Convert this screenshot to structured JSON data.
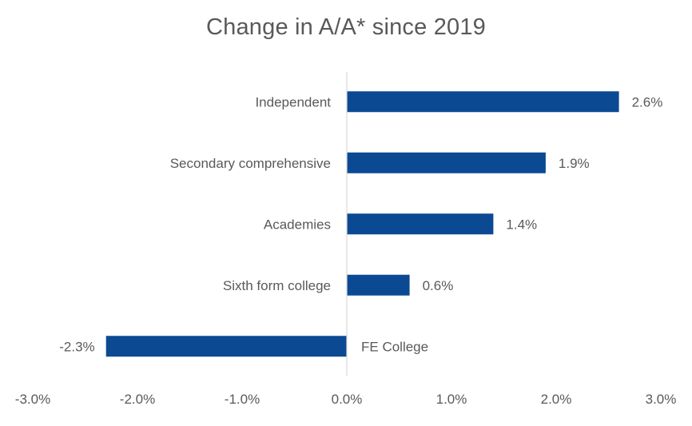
{
  "chart_data": {
    "type": "bar",
    "orientation": "horizontal",
    "title": "Change in A/A* since 2019",
    "xlabel": "",
    "ylabel": "",
    "categories": [
      "Independent",
      "Secondary comprehensive",
      "Academies",
      "Sixth form college",
      "FE College"
    ],
    "values": [
      2.6,
      1.9,
      1.4,
      0.6,
      -2.3
    ],
    "value_labels": [
      "2.6%",
      "1.9%",
      "1.4%",
      "0.6%",
      "-2.3%"
    ],
    "xlim": [
      -3.0,
      3.0
    ],
    "xticks": [
      -3.0,
      -2.0,
      -1.0,
      0.0,
      1.0,
      2.0,
      3.0
    ],
    "xtick_labels": [
      "-3.0%",
      "-2.0%",
      "-1.0%",
      "0.0%",
      "1.0%",
      "2.0%",
      "3.0%"
    ],
    "grid": false,
    "legend": "none",
    "bar_color": "#0B4A93",
    "axis_color": "#D9D9D9",
    "text_color": "#595959"
  }
}
